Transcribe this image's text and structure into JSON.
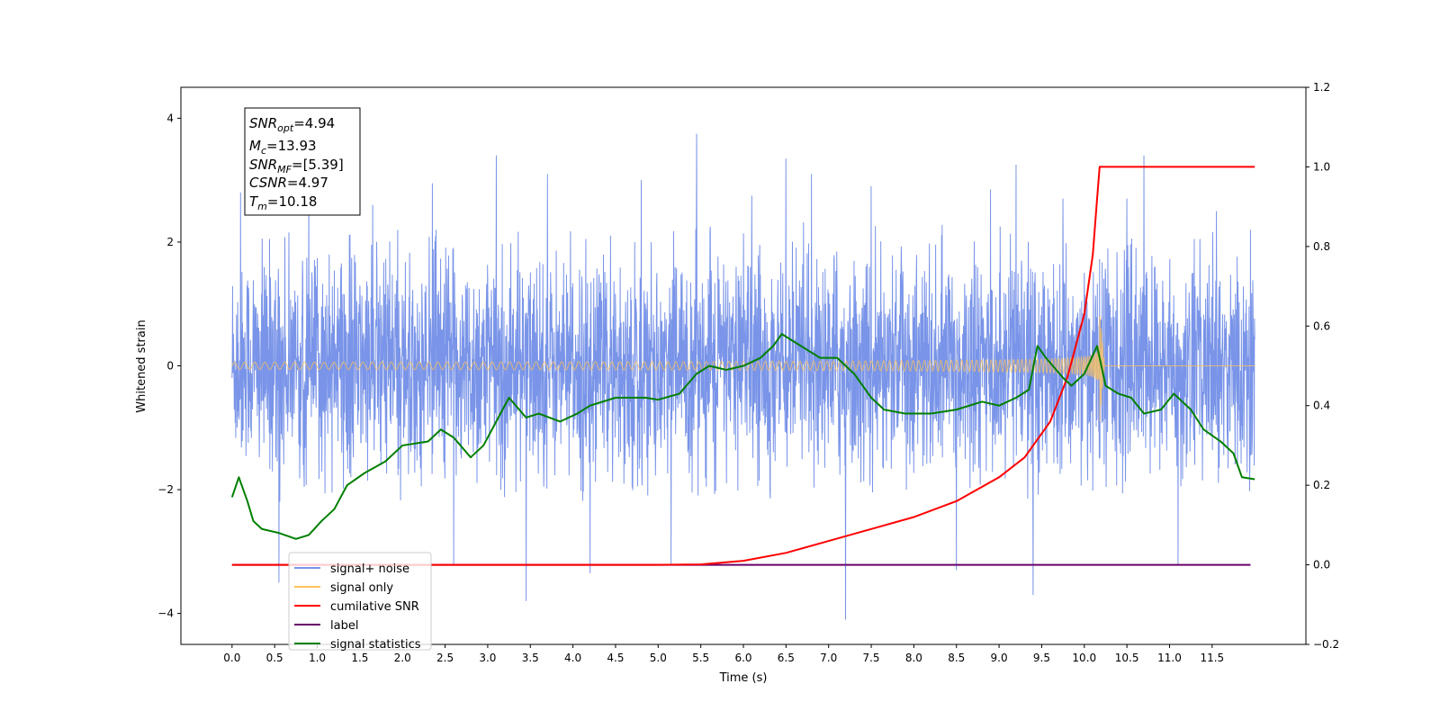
{
  "chart_data": {
    "type": "line",
    "xlabel": "Time (s)",
    "ylabel": "Whitened strain",
    "xlim": [
      -0.6,
      12.6
    ],
    "ylim": [
      -4.5,
      4.5
    ],
    "y2lim": [
      -0.2,
      1.2
    ],
    "x_ticks": [
      "0.0",
      "0.5",
      "1.0",
      "1.5",
      "2.0",
      "2.5",
      "3.0",
      "3.5",
      "4.0",
      "4.5",
      "5.0",
      "5.5",
      "6.0",
      "6.5",
      "7.0",
      "7.5",
      "8.0",
      "8.5",
      "9.0",
      "9.5",
      "10.0",
      "10.5",
      "11.0",
      "11.5"
    ],
    "y_ticks": [
      "−4",
      "−2",
      "0",
      "2",
      "4"
    ],
    "y2_ticks": [
      "−0.2",
      "0.0",
      "0.2",
      "0.4",
      "0.6",
      "0.8",
      "1.0",
      "1.2"
    ],
    "info_box": {
      "snr_opt": {
        "base": "SNR",
        "sub": "opt",
        "value": "=4.94"
      },
      "mc": {
        "base": "M",
        "sub": "c",
        "value": "=13.93"
      },
      "snr_mf": {
        "base": "SNR",
        "sub": "MF",
        "value": "=[5.39]"
      },
      "csnr": {
        "base": "CSNR",
        "value": "=4.97"
      },
      "tm": {
        "base": "T",
        "sub": "m",
        "value": "=10.18"
      }
    },
    "legend": {
      "placement": "lower-left",
      "entries": [
        {
          "label": "signal+ noise",
          "color": "#7994e8"
        },
        {
          "label": "signal only",
          "color": "#ffc35a"
        },
        {
          "label": "cumilative SNR",
          "color": "#ff0000"
        },
        {
          "label": "label",
          "color": "#6a006a"
        },
        {
          "label": "signal statistics",
          "color": "#007f00"
        }
      ]
    },
    "series": [
      {
        "name": "signal+ noise",
        "axis": "left",
        "color": "#7994e8",
        "t_range": [
          0.0,
          12.0
        ],
        "noise_envelope": [
          -2.0,
          2.1
        ],
        "spikes": [
          [
            0.1,
            2.8
          ],
          [
            0.55,
            -3.5
          ],
          [
            0.9,
            2.95
          ],
          [
            1.65,
            2.6
          ],
          [
            2.35,
            2.95
          ],
          [
            2.6,
            -3.2
          ],
          [
            3.1,
            3.4
          ],
          [
            3.45,
            -3.8
          ],
          [
            3.7,
            3.1
          ],
          [
            4.2,
            -3.35
          ],
          [
            4.8,
            3.0
          ],
          [
            5.15,
            -3.2
          ],
          [
            5.45,
            3.75
          ],
          [
            6.1,
            2.75
          ],
          [
            6.5,
            3.35
          ],
          [
            6.8,
            3.1
          ],
          [
            7.2,
            -4.1
          ],
          [
            7.5,
            2.9
          ],
          [
            8.5,
            -3.3
          ],
          [
            8.9,
            2.85
          ],
          [
            9.2,
            3.25
          ],
          [
            9.4,
            -3.7
          ],
          [
            9.75,
            2.7
          ],
          [
            10.5,
            2.7
          ],
          [
            10.7,
            3.4
          ],
          [
            11.1,
            -3.2
          ],
          [
            11.55,
            2.5
          ],
          [
            11.95,
            2.2
          ]
        ]
      },
      {
        "name": "signal only",
        "axis": "left",
        "color": "#ffc35a",
        "chirp": {
          "t_start": 0.0,
          "t_merger": 10.18,
          "peak_amplitude": 0.95,
          "end_time": 12.0
        }
      },
      {
        "name": "cumilative SNR",
        "axis": "right",
        "color": "#ff0000",
        "points": [
          [
            0.0,
            0.0
          ],
          [
            5.0,
            0.0
          ],
          [
            5.5,
            0.001
          ],
          [
            6.0,
            0.01
          ],
          [
            6.5,
            0.03
          ],
          [
            7.0,
            0.06
          ],
          [
            7.5,
            0.09
          ],
          [
            8.0,
            0.12
          ],
          [
            8.5,
            0.16
          ],
          [
            9.0,
            0.22
          ],
          [
            9.3,
            0.27
          ],
          [
            9.6,
            0.36
          ],
          [
            9.8,
            0.47
          ],
          [
            10.0,
            0.63
          ],
          [
            10.1,
            0.78
          ],
          [
            10.15,
            0.92
          ],
          [
            10.18,
            1.0
          ],
          [
            12.0,
            1.0
          ]
        ]
      },
      {
        "name": "label",
        "axis": "right",
        "color": "#6a006a",
        "points": [
          [
            0.0,
            0.0
          ],
          [
            11.95,
            0.0
          ]
        ]
      },
      {
        "name": "signal statistics",
        "axis": "right",
        "color": "#007f00",
        "points": [
          [
            0.0,
            0.17
          ],
          [
            0.08,
            0.22
          ],
          [
            0.18,
            0.16
          ],
          [
            0.25,
            0.11
          ],
          [
            0.35,
            0.09
          ],
          [
            0.55,
            0.08
          ],
          [
            0.75,
            0.065
          ],
          [
            0.9,
            0.075
          ],
          [
            1.05,
            0.11
          ],
          [
            1.2,
            0.14
          ],
          [
            1.35,
            0.2
          ],
          [
            1.55,
            0.23
          ],
          [
            1.8,
            0.26
          ],
          [
            2.0,
            0.3
          ],
          [
            2.3,
            0.31
          ],
          [
            2.45,
            0.34
          ],
          [
            2.6,
            0.32
          ],
          [
            2.8,
            0.27
          ],
          [
            2.95,
            0.3
          ],
          [
            3.1,
            0.36
          ],
          [
            3.25,
            0.42
          ],
          [
            3.45,
            0.37
          ],
          [
            3.6,
            0.38
          ],
          [
            3.85,
            0.36
          ],
          [
            4.05,
            0.38
          ],
          [
            4.2,
            0.4
          ],
          [
            4.5,
            0.42
          ],
          [
            4.85,
            0.42
          ],
          [
            5.0,
            0.415
          ],
          [
            5.25,
            0.43
          ],
          [
            5.45,
            0.48
          ],
          [
            5.6,
            0.5
          ],
          [
            5.8,
            0.49
          ],
          [
            6.0,
            0.5
          ],
          [
            6.2,
            0.52
          ],
          [
            6.35,
            0.55
          ],
          [
            6.45,
            0.58
          ],
          [
            6.6,
            0.56
          ],
          [
            6.75,
            0.54
          ],
          [
            6.9,
            0.52
          ],
          [
            7.1,
            0.52
          ],
          [
            7.3,
            0.48
          ],
          [
            7.5,
            0.42
          ],
          [
            7.65,
            0.39
          ],
          [
            7.9,
            0.38
          ],
          [
            8.2,
            0.38
          ],
          [
            8.5,
            0.39
          ],
          [
            8.8,
            0.41
          ],
          [
            9.0,
            0.4
          ],
          [
            9.2,
            0.42
          ],
          [
            9.35,
            0.44
          ],
          [
            9.45,
            0.55
          ],
          [
            9.55,
            0.52
          ],
          [
            9.75,
            0.47
          ],
          [
            9.85,
            0.45
          ],
          [
            10.0,
            0.48
          ],
          [
            10.15,
            0.55
          ],
          [
            10.25,
            0.45
          ],
          [
            10.4,
            0.43
          ],
          [
            10.55,
            0.42
          ],
          [
            10.7,
            0.38
          ],
          [
            10.9,
            0.39
          ],
          [
            11.05,
            0.43
          ],
          [
            11.25,
            0.39
          ],
          [
            11.4,
            0.34
          ],
          [
            11.6,
            0.31
          ],
          [
            11.75,
            0.28
          ],
          [
            11.85,
            0.22
          ],
          [
            12.0,
            0.215
          ]
        ]
      }
    ]
  }
}
